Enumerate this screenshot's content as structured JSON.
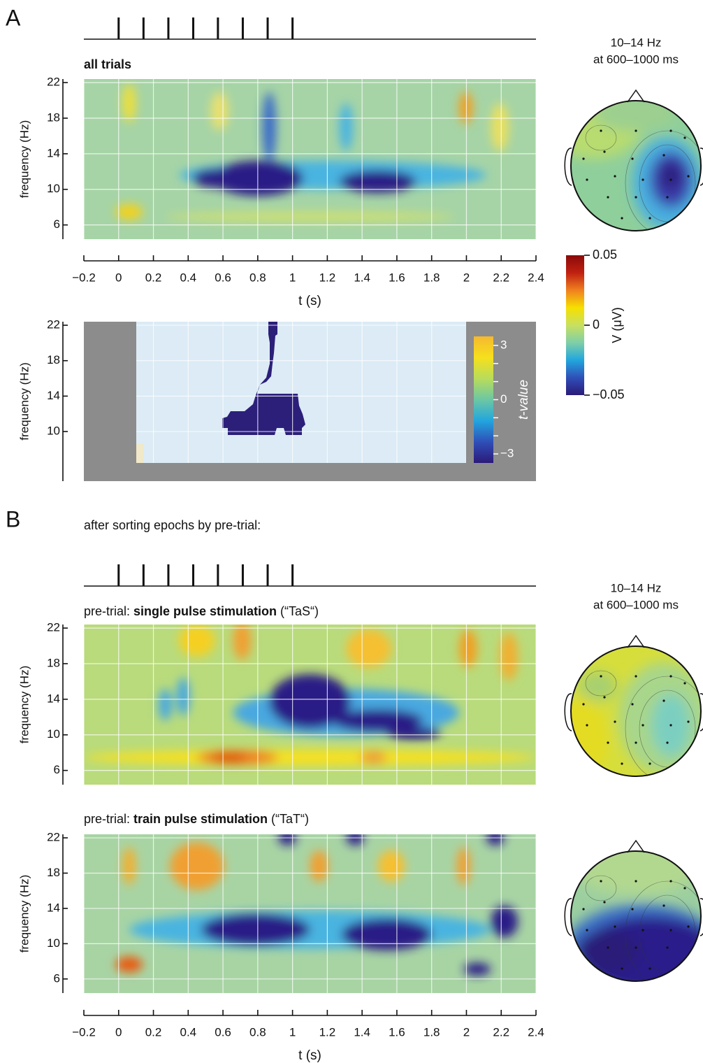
{
  "panels": {
    "A": "A",
    "B": "B",
    "B_subtitle": "after sorting epochs by pre-trial:"
  },
  "chart_data": [
    {
      "type": "heatmap",
      "title": [
        "all trials"
      ],
      "xlim": [
        -0.2,
        2.4
      ],
      "ylim": [
        4.4,
        22.4
      ],
      "xticks": [
        {
          "value": -0.2,
          "label": "−0.2"
        },
        0,
        0.2,
        0.4,
        0.6,
        0.8,
        1,
        1.2,
        1.4,
        1.6,
        1.8,
        2,
        2.2,
        2.4
      ],
      "yticks": [
        6,
        10,
        14,
        18,
        22
      ],
      "xlabel": "t (s)",
      "ylabel": "frequency (Hz)",
      "pulses": [
        0,
        0.143,
        0.286,
        0.429,
        0.571,
        0.714,
        0.857,
        1
      ],
      "grid": true
    },
    {
      "type": "heatmap",
      "xlim": [
        -0.2,
        2.4
      ],
      "ylim": [
        4.4,
        22.4
      ],
      "yticks": [
        10,
        14,
        18,
        22
      ],
      "ylabel": "frequency (Hz)",
      "grid": true,
      "colorbar": {
        "label": "t-value",
        "lim": [
          -3.5,
          3.5
        ],
        "ticks": [
          3,
          0,
          {
            "value": -3,
            "label": "−3"
          }
        ],
        "minor_ticks": [
          2,
          1,
          -1,
          -2
        ],
        "colormap": [
          "#2b1a78",
          "#2f4fb8",
          "#22a6de",
          "#6cc7a4",
          "#b8dc5c",
          "#f6e01c",
          "#f5b830"
        ]
      }
    },
    {
      "type": "heatmap",
      "title": [
        "pre-trial: ",
        "single pulse stimulation",
        " (“TaS“)"
      ],
      "xlim": [
        -0.2,
        2.4
      ],
      "ylim": [
        4.4,
        22.4
      ],
      "yticks": [
        6,
        10,
        14,
        18,
        22
      ],
      "ylabel": "frequency (Hz)",
      "pulses": [
        0,
        0.143,
        0.286,
        0.429,
        0.571,
        0.714,
        0.857,
        1
      ],
      "grid": true
    },
    {
      "type": "heatmap",
      "title": [
        "pre-trial: ",
        "train pulse stimulation",
        " (“TaT“)"
      ],
      "xlim": [
        -0.2,
        2.4
      ],
      "ylim": [
        4.4,
        22.4
      ],
      "xticks": [
        {
          "value": -0.2,
          "label": "−0.2"
        },
        0,
        0.2,
        0.4,
        0.6,
        0.8,
        1,
        1.2,
        1.4,
        1.6,
        1.8,
        2,
        2.2,
        2.4
      ],
      "yticks": [
        6,
        10,
        14,
        18,
        22
      ],
      "xlabel": "t (s)",
      "ylabel": "frequency (Hz)",
      "grid": true
    }
  ],
  "topomaps": [
    {
      "label": [
        "10–14 Hz",
        "at 600–1000 ms"
      ]
    },
    {
      "label": [
        "10–14 Hz",
        "at 600–1000 ms"
      ]
    }
  ],
  "voltage_colorbar": {
    "label": "V (μV)",
    "lim": [
      -0.05,
      0.05
    ],
    "ticks": [
      0.05,
      0,
      {
        "value": -0.05,
        "label": "−0.05"
      }
    ],
    "colormap": [
      "#2b1a78",
      "#2f4fb8",
      "#22a6de",
      "#7fcfa8",
      "#c8e060",
      "#f6e000",
      "#f08020",
      "#c02010",
      "#8a0a0a"
    ]
  }
}
